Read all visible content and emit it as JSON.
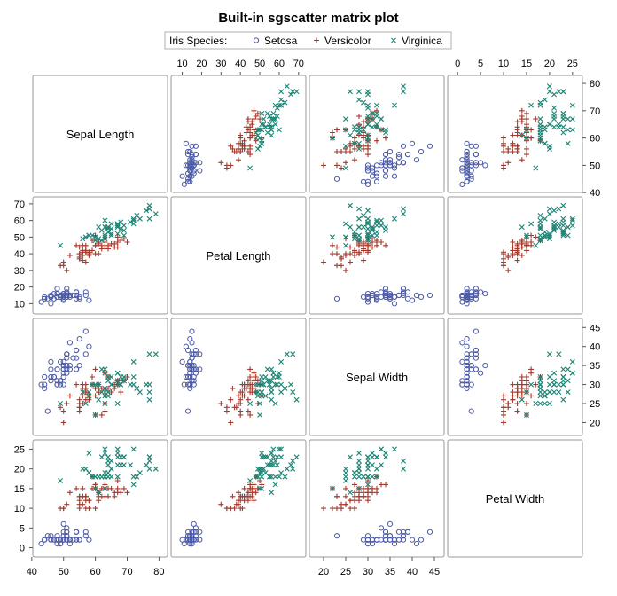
{
  "chart_data": {
    "type": "scatter",
    "title": "Built-in sgscatter matrix plot",
    "legend": {
      "title": "Iris Species:",
      "placement": "top",
      "entries": [
        {
          "name": "Setosa",
          "color": "#4D5BA6",
          "marker": "circle"
        },
        {
          "name": "Versicolor",
          "color": "#A23A2E",
          "marker": "plus"
        },
        {
          "name": "Virginica",
          "color": "#1E8576",
          "marker": "x"
        }
      ]
    },
    "variables": [
      {
        "name": "Sepal Length",
        "range": [
          42,
          81
        ],
        "ticks": [
          40,
          50,
          60,
          70,
          80
        ]
      },
      {
        "name": "Petal Length",
        "range": [
          7,
          71
        ],
        "ticks": [
          10,
          20,
          30,
          40,
          50,
          60,
          70
        ]
      },
      {
        "name": "Sepal Width",
        "range": [
          18,
          46
        ],
        "ticks": [
          20,
          25,
          30,
          35,
          40,
          45
        ]
      },
      {
        "name": "Petal Width",
        "range": [
          -1,
          26
        ],
        "ticks": [
          0,
          5,
          10,
          15,
          20,
          25
        ]
      }
    ],
    "series": [
      {
        "name": "Setosa",
        "points": [
          [
            51,
            14,
            35,
            2
          ],
          [
            49,
            14,
            30,
            2
          ],
          [
            47,
            13,
            32,
            2
          ],
          [
            46,
            15,
            31,
            2
          ],
          [
            50,
            14,
            36,
            2
          ],
          [
            54,
            17,
            39,
            4
          ],
          [
            46,
            14,
            34,
            3
          ],
          [
            50,
            15,
            34,
            2
          ],
          [
            44,
            14,
            29,
            2
          ],
          [
            49,
            15,
            31,
            1
          ],
          [
            54,
            15,
            37,
            2
          ],
          [
            48,
            16,
            34,
            2
          ],
          [
            48,
            14,
            30,
            1
          ],
          [
            43,
            11,
            30,
            1
          ],
          [
            58,
            12,
            40,
            2
          ],
          [
            57,
            15,
            44,
            4
          ],
          [
            54,
            13,
            39,
            4
          ],
          [
            51,
            14,
            35,
            3
          ],
          [
            57,
            17,
            38,
            3
          ],
          [
            51,
            15,
            38,
            3
          ],
          [
            54,
            17,
            34,
            2
          ],
          [
            51,
            15,
            37,
            4
          ],
          [
            46,
            10,
            36,
            2
          ],
          [
            51,
            17,
            33,
            5
          ],
          [
            48,
            19,
            34,
            2
          ],
          [
            50,
            16,
            30,
            2
          ],
          [
            50,
            16,
            34,
            4
          ],
          [
            52,
            15,
            35,
            2
          ],
          [
            52,
            14,
            34,
            2
          ],
          [
            47,
            16,
            32,
            2
          ],
          [
            48,
            16,
            31,
            2
          ],
          [
            54,
            15,
            34,
            4
          ],
          [
            52,
            15,
            41,
            1
          ],
          [
            55,
            14,
            42,
            2
          ],
          [
            49,
            15,
            31,
            2
          ],
          [
            50,
            12,
            32,
            2
          ],
          [
            55,
            13,
            35,
            2
          ],
          [
            49,
            14,
            36,
            1
          ],
          [
            44,
            13,
            30,
            2
          ],
          [
            51,
            15,
            34,
            2
          ],
          [
            50,
            13,
            35,
            3
          ],
          [
            45,
            13,
            23,
            3
          ],
          [
            44,
            13,
            32,
            2
          ],
          [
            50,
            16,
            35,
            6
          ],
          [
            51,
            19,
            38,
            4
          ],
          [
            48,
            14,
            30,
            3
          ],
          [
            51,
            16,
            38,
            2
          ],
          [
            46,
            14,
            32,
            2
          ],
          [
            53,
            15,
            37,
            2
          ],
          [
            50,
            14,
            33,
            2
          ]
        ]
      },
      {
        "name": "Versicolor",
        "points": [
          [
            70,
            47,
            32,
            14
          ],
          [
            64,
            45,
            32,
            15
          ],
          [
            69,
            49,
            31,
            15
          ],
          [
            55,
            40,
            23,
            13
          ],
          [
            65,
            46,
            28,
            15
          ],
          [
            57,
            45,
            28,
            13
          ],
          [
            63,
            47,
            33,
            16
          ],
          [
            49,
            33,
            24,
            10
          ],
          [
            66,
            46,
            29,
            13
          ],
          [
            52,
            39,
            27,
            14
          ],
          [
            50,
            35,
            20,
            10
          ],
          [
            59,
            42,
            30,
            15
          ],
          [
            60,
            40,
            22,
            10
          ],
          [
            61,
            47,
            29,
            14
          ],
          [
            56,
            36,
            29,
            13
          ],
          [
            67,
            44,
            31,
            14
          ],
          [
            56,
            45,
            30,
            15
          ],
          [
            58,
            41,
            27,
            10
          ],
          [
            62,
            45,
            22,
            15
          ],
          [
            56,
            39,
            25,
            11
          ],
          [
            59,
            48,
            32,
            18
          ],
          [
            61,
            40,
            28,
            13
          ],
          [
            63,
            49,
            25,
            15
          ],
          [
            61,
            47,
            28,
            12
          ],
          [
            64,
            43,
            29,
            13
          ],
          [
            66,
            44,
            30,
            14
          ],
          [
            68,
            48,
            28,
            14
          ],
          [
            67,
            50,
            30,
            17
          ],
          [
            60,
            45,
            29,
            15
          ],
          [
            57,
            35,
            26,
            10
          ],
          [
            55,
            38,
            24,
            11
          ],
          [
            55,
            37,
            24,
            10
          ],
          [
            58,
            39,
            27,
            12
          ],
          [
            60,
            51,
            27,
            16
          ],
          [
            54,
            45,
            30,
            15
          ],
          [
            60,
            45,
            34,
            16
          ],
          [
            67,
            47,
            31,
            15
          ],
          [
            63,
            44,
            23,
            13
          ],
          [
            56,
            41,
            30,
            13
          ],
          [
            55,
            40,
            25,
            13
          ],
          [
            55,
            44,
            26,
            12
          ],
          [
            61,
            46,
            30,
            14
          ],
          [
            58,
            40,
            26,
            12
          ],
          [
            50,
            33,
            23,
            10
          ],
          [
            56,
            42,
            27,
            13
          ],
          [
            57,
            42,
            30,
            12
          ],
          [
            57,
            42,
            29,
            13
          ],
          [
            62,
            43,
            29,
            13
          ],
          [
            51,
            30,
            25,
            11
          ],
          [
            57,
            41,
            28,
            13
          ]
        ]
      },
      {
        "name": "Virginica",
        "points": [
          [
            63,
            60,
            33,
            25
          ],
          [
            58,
            51,
            27,
            19
          ],
          [
            71,
            59,
            30,
            21
          ],
          [
            63,
            56,
            29,
            18
          ],
          [
            65,
            58,
            30,
            22
          ],
          [
            76,
            66,
            30,
            21
          ],
          [
            49,
            45,
            25,
            17
          ],
          [
            73,
            63,
            29,
            18
          ],
          [
            67,
            58,
            25,
            18
          ],
          [
            72,
            61,
            36,
            25
          ],
          [
            65,
            51,
            32,
            20
          ],
          [
            64,
            53,
            27,
            19
          ],
          [
            68,
            55,
            30,
            21
          ],
          [
            57,
            50,
            25,
            20
          ],
          [
            58,
            51,
            28,
            24
          ],
          [
            64,
            53,
            32,
            23
          ],
          [
            65,
            55,
            30,
            18
          ],
          [
            77,
            67,
            38,
            22
          ],
          [
            77,
            69,
            26,
            23
          ],
          [
            60,
            50,
            22,
            15
          ],
          [
            69,
            57,
            32,
            23
          ],
          [
            56,
            49,
            28,
            20
          ],
          [
            77,
            67,
            28,
            20
          ],
          [
            63,
            49,
            27,
            18
          ],
          [
            67,
            57,
            33,
            21
          ],
          [
            72,
            60,
            32,
            18
          ],
          [
            62,
            48,
            28,
            18
          ],
          [
            61,
            49,
            30,
            18
          ],
          [
            64,
            56,
            28,
            21
          ],
          [
            72,
            58,
            30,
            16
          ],
          [
            74,
            61,
            28,
            19
          ],
          [
            79,
            64,
            38,
            20
          ],
          [
            64,
            56,
            28,
            22
          ],
          [
            63,
            51,
            28,
            15
          ],
          [
            61,
            56,
            26,
            14
          ],
          [
            77,
            61,
            30,
            23
          ],
          [
            63,
            56,
            34,
            24
          ],
          [
            64,
            55,
            31,
            18
          ],
          [
            60,
            48,
            30,
            18
          ],
          [
            69,
            54,
            31,
            21
          ],
          [
            67,
            56,
            31,
            24
          ],
          [
            69,
            51,
            31,
            23
          ],
          [
            58,
            51,
            27,
            19
          ],
          [
            68,
            59,
            32,
            23
          ],
          [
            67,
            57,
            33,
            25
          ],
          [
            67,
            52,
            30,
            23
          ],
          [
            63,
            50,
            25,
            19
          ],
          [
            65,
            52,
            30,
            20
          ],
          [
            62,
            54,
            34,
            23
          ],
          [
            59,
            51,
            30,
            18
          ]
        ]
      }
    ]
  }
}
